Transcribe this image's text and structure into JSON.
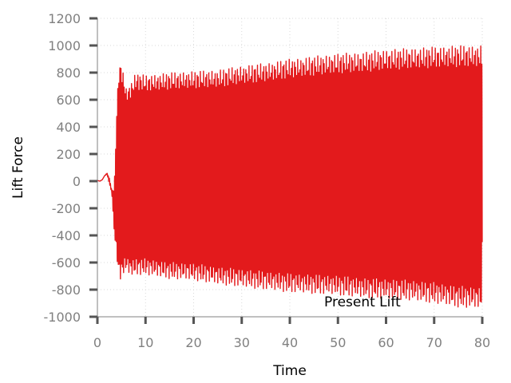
{
  "chart_data": {
    "type": "line",
    "title": "",
    "xlabel": "Time",
    "ylabel": "Lift Force",
    "xlim": [
      0,
      80
    ],
    "ylim": [
      -1000,
      1200
    ],
    "xticks": [
      0,
      10,
      20,
      30,
      40,
      50,
      60,
      70,
      80
    ],
    "xtick_labels": [
      "0",
      "10",
      "20",
      "30",
      "40",
      "50",
      "60",
      "70",
      "80"
    ],
    "yticks": [
      -1000,
      -800,
      -600,
      -400,
      -200,
      0,
      200,
      400,
      600,
      800,
      1000,
      1200
    ],
    "ytick_labels": [
      "-1000",
      "-800",
      "-600",
      "-400",
      "-200",
      "0",
      "200",
      "400",
      "600",
      "800",
      "1000",
      "1200"
    ],
    "grid": true,
    "legend": "bottom-right",
    "series": [
      {
        "name": "Present Lift",
        "color": "#e31a1c",
        "oscillation_period": 0.22,
        "x": [
          0,
          0.5,
          1,
          1.5,
          2,
          2.5,
          3,
          3.5,
          4,
          4.5,
          5,
          6,
          7,
          8,
          10,
          15,
          20,
          25,
          30,
          35,
          40,
          45,
          50,
          55,
          60,
          65,
          70,
          75,
          80
        ],
        "upper": [
          5,
          0,
          10,
          40,
          60,
          20,
          -70,
          -50,
          520,
          880,
          870,
          690,
          730,
          800,
          780,
          800,
          810,
          820,
          850,
          870,
          900,
          920,
          940,
          950,
          970,
          980,
          990,
          1000,
          1000
        ],
        "lower": [
          5,
          0,
          10,
          40,
          50,
          -20,
          -90,
          -380,
          -560,
          -730,
          -720,
          -660,
          -700,
          -690,
          -690,
          -720,
          -730,
          -760,
          -780,
          -800,
          -820,
          -830,
          -840,
          -860,
          -870,
          -880,
          -900,
          -930,
          -940
        ]
      }
    ]
  }
}
